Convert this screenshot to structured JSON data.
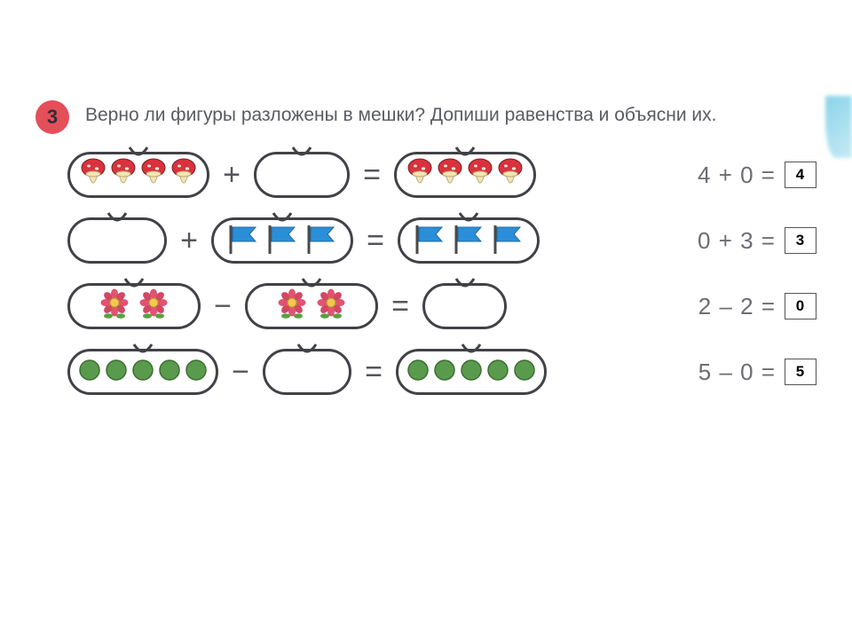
{
  "badge": {
    "number": "3",
    "bg": "#e44f5a",
    "text_color": "#2e2f33"
  },
  "question": "Верно ли фигуры разложены в мешки? Допиши равенства и объясни их.",
  "colors": {
    "bag_border": "#414247",
    "operator": "#55565b",
    "equation_text": "#6c6d73",
    "question_text": "#5a5c63",
    "mushroom_cap": "#d9323c",
    "mushroom_stem": "#f2e6b3",
    "flag_fill": "#2a8fd8",
    "flag_pole": "#4a4a4a",
    "flower_petal": "#e0546f",
    "flower_petal2": "#d14863",
    "flower_center": "#f2c94c",
    "flower_leaf": "#5aa043",
    "circle_fill": "#5a9a4c",
    "circle_stroke": "#3d6e33",
    "answer_border": "#555555"
  },
  "rows": [
    {
      "op": "+",
      "bag_a": {
        "width": 160,
        "item": "mushroom",
        "count": 4
      },
      "bag_b": {
        "width": 108,
        "item": "empty",
        "count": 0
      },
      "bag_c": {
        "width": 160,
        "item": "mushroom",
        "count": 4
      },
      "equation": "4 + 0  =",
      "answer": "4"
    },
    {
      "op": "+",
      "bag_a": {
        "width": 112,
        "item": "empty",
        "count": 0
      },
      "bag_b": {
        "width": 160,
        "item": "flag",
        "count": 3
      },
      "bag_c": {
        "width": 160,
        "item": "flag",
        "count": 3
      },
      "equation": "0 + 3  =",
      "answer": "3"
    },
    {
      "op": "−",
      "bag_a": {
        "width": 150,
        "item": "flower",
        "count": 2
      },
      "bag_b": {
        "width": 150,
        "item": "flower",
        "count": 2
      },
      "bag_c": {
        "width": 95,
        "item": "empty",
        "count": 0
      },
      "equation": "2 – 2  =",
      "answer": "0"
    },
    {
      "op": "−",
      "bag_a": {
        "width": 170,
        "item": "circle",
        "count": 5
      },
      "bag_b": {
        "width": 100,
        "item": "empty",
        "count": 0
      },
      "bag_c": {
        "width": 170,
        "item": "circle",
        "count": 5
      },
      "equation": "5 – 0  =",
      "answer": "5"
    }
  ]
}
